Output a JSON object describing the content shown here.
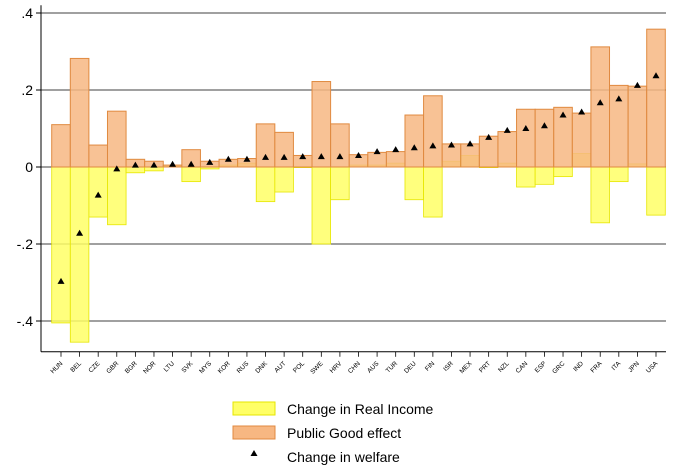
{
  "chart_data": {
    "type": "bar",
    "title": "",
    "xlabel": "",
    "ylabel": "",
    "ylim": [
      -0.48,
      0.42
    ],
    "yticks": [
      -0.4,
      -0.2,
      0,
      0.2,
      0.4
    ],
    "ytick_labels": [
      "-.4",
      "-.2",
      "0",
      ".2",
      ".4"
    ],
    "grid": true,
    "legend_position": "bottom-center",
    "colors": {
      "real_income_fill": "#ffff66",
      "real_income_edge": "#e6e600",
      "public_good_fill": "#f7b782",
      "public_good_edge": "#e08a40",
      "marker": "#000000",
      "grid": "#000000"
    },
    "categories": [
      "HUN",
      "BEL",
      "CZE",
      "GBR",
      "BGR",
      "NOR",
      "LTU",
      "SVK",
      "MYS",
      "KOR",
      "RUS",
      "DNK",
      "AUT",
      "POL",
      "SWE",
      "HRV",
      "CHN",
      "AUS",
      "TUR",
      "DEU",
      "FIN",
      "ISR",
      "MEX",
      "PRT",
      "NZL",
      "CAN",
      "ESP",
      "GRC",
      "IND",
      "FRA",
      "ITA",
      "JPN",
      "USA"
    ],
    "series": [
      {
        "name": "Change in Real Income",
        "values": [
          -0.405,
          -0.455,
          -0.13,
          -0.15,
          -0.015,
          -0.01,
          0.002,
          -0.038,
          -0.005,
          0.005,
          0.01,
          -0.09,
          -0.065,
          0.0,
          -0.2,
          -0.085,
          0.005,
          0.005,
          0.01,
          -0.085,
          -0.13,
          0.015,
          0.03,
          0.0,
          0.01,
          -0.052,
          -0.045,
          -0.025,
          0.035,
          -0.145,
          -0.038,
          0.008,
          -0.125
        ]
      },
      {
        "name": "Public Good effect",
        "values": [
          0.11,
          0.282,
          0.057,
          0.145,
          0.02,
          0.015,
          0.005,
          0.045,
          0.015,
          0.02,
          0.022,
          0.112,
          0.09,
          0.03,
          0.222,
          0.112,
          0.032,
          0.038,
          0.04,
          0.135,
          0.185,
          0.06,
          0.06,
          0.08,
          0.092,
          0.15,
          0.15,
          0.155,
          0.14,
          0.312,
          0.212,
          0.21,
          0.358
        ]
      },
      {
        "name": "Change in welfare",
        "values": [
          -0.297,
          -0.172,
          -0.073,
          -0.005,
          0.005,
          0.005,
          0.007,
          0.007,
          0.012,
          0.02,
          0.02,
          0.025,
          0.025,
          0.027,
          0.027,
          0.027,
          0.03,
          0.04,
          0.045,
          0.05,
          0.055,
          0.057,
          0.06,
          0.077,
          0.095,
          0.1,
          0.107,
          0.135,
          0.143,
          0.167,
          0.177,
          0.212,
          0.237
        ]
      }
    ]
  }
}
